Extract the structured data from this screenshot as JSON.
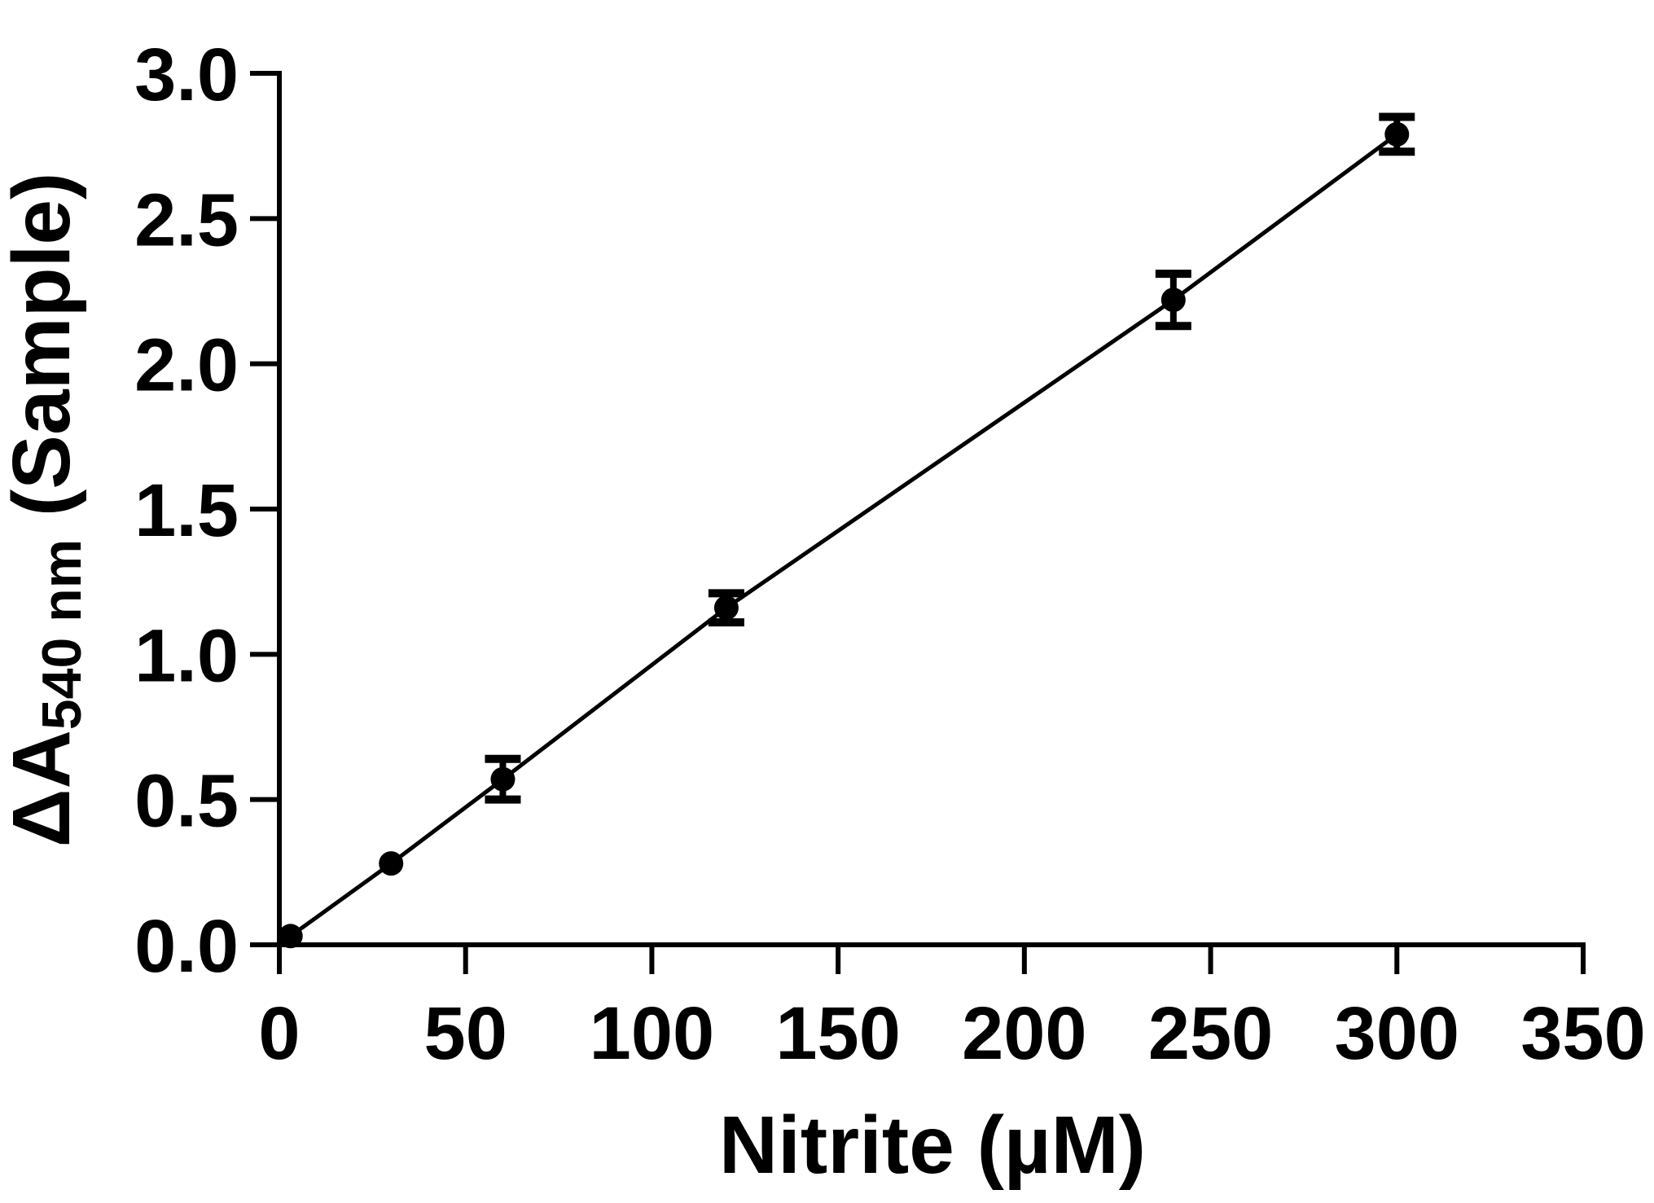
{
  "chart_data": {
    "type": "line",
    "xlabel": "Nitrite (µM)",
    "ylabel": {
      "prefix": "ΔA",
      "subscript": "540 nm",
      "suffix": " (Sample)"
    },
    "xlim": [
      0,
      350
    ],
    "ylim": [
      0,
      3.0
    ],
    "xticks": [
      0,
      50,
      100,
      150,
      200,
      250,
      300,
      350
    ],
    "yticks": [
      0.0,
      0.5,
      1.0,
      1.5,
      2.0,
      2.5,
      3.0
    ],
    "xtick_labels": [
      "0",
      "50",
      "100",
      "150",
      "200",
      "250",
      "300",
      "350"
    ],
    "ytick_labels": [
      "0.0",
      "0.5",
      "1.0",
      "1.5",
      "2.0",
      "2.5",
      "3.0"
    ],
    "grid": false,
    "series": [
      {
        "x": [
          3,
          30,
          60,
          120,
          240,
          300
        ],
        "y": [
          0.03,
          0.28,
          0.57,
          1.16,
          2.22,
          2.79
        ],
        "error": [
          0,
          0,
          0.07,
          0.05,
          0.09,
          0.06
        ],
        "color": "#000000"
      }
    ]
  }
}
